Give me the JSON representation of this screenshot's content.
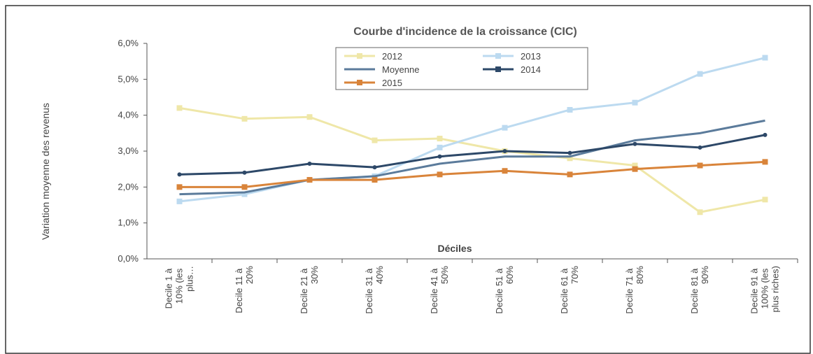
{
  "chart_data": {
    "type": "line",
    "title": "Courbe d'incidence de la croissance (CIC)",
    "y_label": "Variation moyenne des revenus",
    "x_label": "Déciles",
    "categories": [
      "Decile 1 à 10% (les plus…",
      "Decile 11 à 20%",
      "Decile 21 à 30%",
      "Decile 31 à 40%",
      "Decile 41 à 50%",
      "Decile 51 à 60%",
      "Decile 61 à 70%",
      "Decile 71 à 80%",
      "Decile 81 à 90%",
      "Decile 91 à 100% (les plus riches)"
    ],
    "series": [
      {
        "name": "2012",
        "color": "#efe7a8",
        "marker": "square",
        "values": [
          4.2,
          3.9,
          3.95,
          3.3,
          3.35,
          3.0,
          2.8,
          2.6,
          1.3,
          1.65
        ]
      },
      {
        "name": "2013",
        "color": "#bcdaf0",
        "marker": "square",
        "values": [
          1.6,
          1.8,
          2.2,
          2.3,
          3.1,
          3.65,
          4.15,
          4.35,
          5.15,
          5.6
        ]
      },
      {
        "name": "Moyenne",
        "color": "#5b7b9b",
        "marker": "none",
        "values": [
          1.8,
          1.85,
          2.2,
          2.3,
          2.65,
          2.85,
          2.85,
          3.3,
          3.5,
          3.85
        ]
      },
      {
        "name": "2014",
        "color": "#2d4868",
        "marker": "dot",
        "values": [
          2.35,
          2.4,
          2.65,
          2.55,
          2.85,
          3.0,
          2.95,
          3.2,
          3.1,
          3.45
        ]
      },
      {
        "name": "2015",
        "color": "#d9843a",
        "marker": "square",
        "values": [
          2.0,
          2.0,
          2.2,
          2.2,
          2.35,
          2.45,
          2.35,
          2.5,
          2.6,
          2.7
        ]
      }
    ],
    "ylim": [
      0,
      6
    ],
    "yticks": [
      {
        "value": 0,
        "label": "0,0%"
      },
      {
        "value": 1,
        "label": "1,0%"
      },
      {
        "value": 2,
        "label": "2,0%"
      },
      {
        "value": 3,
        "label": "3,0%"
      },
      {
        "value": 4,
        "label": "4,0%"
      },
      {
        "value": 5,
        "label": "5,0%"
      },
      {
        "value": 6,
        "label": "6,0%"
      }
    ],
    "legend": "top"
  }
}
